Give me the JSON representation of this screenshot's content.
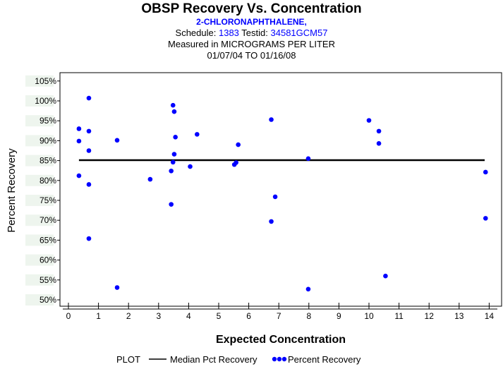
{
  "chart_data": {
    "type": "scatter",
    "title": "OBSP Recovery Vs. Concentration",
    "subtitle": "2-CHLORONAPHTHALENE,",
    "schedule_label": "Schedule:",
    "schedule_value": "1383",
    "testid_label": "Testid:",
    "testid_value": "34581GCM57",
    "measured_in": "Measured in  MICROGRAMS PER LITER",
    "date_range": "01/07/04 TO 01/16/08",
    "xlabel": "Expected Concentration",
    "ylabel": "Percent Recovery",
    "xlim": [
      -0.3,
      14.2
    ],
    "ylim": [
      49,
      106.5
    ],
    "xticks": [
      0,
      1,
      2,
      3,
      4,
      5,
      6,
      7,
      8,
      9,
      10,
      11,
      12,
      13,
      14
    ],
    "xtick_labels": [
      "0",
      "1",
      "2",
      "3",
      "4",
      "5",
      "6",
      "7",
      "8",
      "9",
      "10",
      "11",
      "12",
      "13",
      "14"
    ],
    "yticks": [
      50,
      55,
      60,
      65,
      70,
      75,
      80,
      85,
      90,
      95,
      100,
      105
    ],
    "ytick_labels": [
      "50%",
      "55%",
      "60%",
      "65%",
      "70%",
      "75%",
      "80%",
      "85%",
      "90%",
      "95%",
      "100%",
      "105%"
    ],
    "median_line": {
      "name": "Median Pct Recovery",
      "y": 85.1,
      "x_start": 0.35,
      "x_end": 13.85,
      "color": "#000000"
    },
    "series": [
      {
        "name": "Percent Recovery",
        "color": "#0000ff",
        "points": [
          [
            0.35,
            93.0
          ],
          [
            0.35,
            89.9
          ],
          [
            0.35,
            81.2
          ],
          [
            0.68,
            100.7
          ],
          [
            0.68,
            92.4
          ],
          [
            0.68,
            87.5
          ],
          [
            0.68,
            79.0
          ],
          [
            0.68,
            65.4
          ],
          [
            1.62,
            90.1
          ],
          [
            1.62,
            53.1
          ],
          [
            2.72,
            80.3
          ],
          [
            3.42,
            82.4
          ],
          [
            3.42,
            74.0
          ],
          [
            3.48,
            98.9
          ],
          [
            3.48,
            84.6
          ],
          [
            3.52,
            97.3
          ],
          [
            3.52,
            86.6
          ],
          [
            3.56,
            90.9
          ],
          [
            4.05,
            83.5
          ],
          [
            4.28,
            91.6
          ],
          [
            5.52,
            84.0
          ],
          [
            5.58,
            84.5
          ],
          [
            5.65,
            89.0
          ],
          [
            6.75,
            95.3
          ],
          [
            6.75,
            69.7
          ],
          [
            6.88,
            75.9
          ],
          [
            7.98,
            85.5
          ],
          [
            7.98,
            52.7
          ],
          [
            10.0,
            95.1
          ],
          [
            10.33,
            92.4
          ],
          [
            10.33,
            89.3
          ],
          [
            10.55,
            56.0
          ],
          [
            13.88,
            82.1
          ],
          [
            13.88,
            70.5
          ]
        ]
      }
    ],
    "legend": {
      "prefix": "PLOT",
      "entries": [
        "Median Pct Recovery",
        "Percent Recovery"
      ]
    }
  }
}
